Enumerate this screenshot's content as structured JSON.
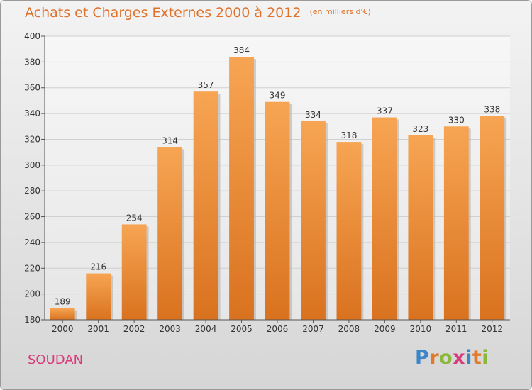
{
  "header": {
    "title": "Achats et Charges Externes 2000 à 2012",
    "unit": "(en milliers d'€)"
  },
  "footer": {
    "place": "SOUDAN",
    "logo_letters": [
      "P",
      "r",
      "o",
      "x",
      "i",
      "t",
      "i"
    ],
    "logo_colors": [
      "#3a86c8",
      "#e07a2a",
      "#8ab83a",
      "#d93a7a",
      "#3a86c8",
      "#e07a2a",
      "#8ab83a"
    ]
  },
  "colors": {
    "bar_top": "#f7a553",
    "bar_bottom": "#d9721f",
    "title": "#e0712a",
    "place": "#d93a7a"
  },
  "chart_data": {
    "type": "bar",
    "title": "Achats et Charges Externes 2000 à 2012",
    "subtitle": "(en milliers d'€)",
    "categories": [
      "2000",
      "2001",
      "2002",
      "2003",
      "2004",
      "2005",
      "2006",
      "2007",
      "2008",
      "2009",
      "2010",
      "2011",
      "2012"
    ],
    "values": [
      189,
      216,
      254,
      314,
      357,
      384,
      349,
      334,
      318,
      337,
      323,
      330,
      338
    ],
    "ylim": [
      180,
      400
    ],
    "yticks": [
      180,
      200,
      220,
      240,
      260,
      280,
      300,
      320,
      340,
      360,
      380,
      400
    ],
    "grid": true,
    "data_labels": true
  }
}
